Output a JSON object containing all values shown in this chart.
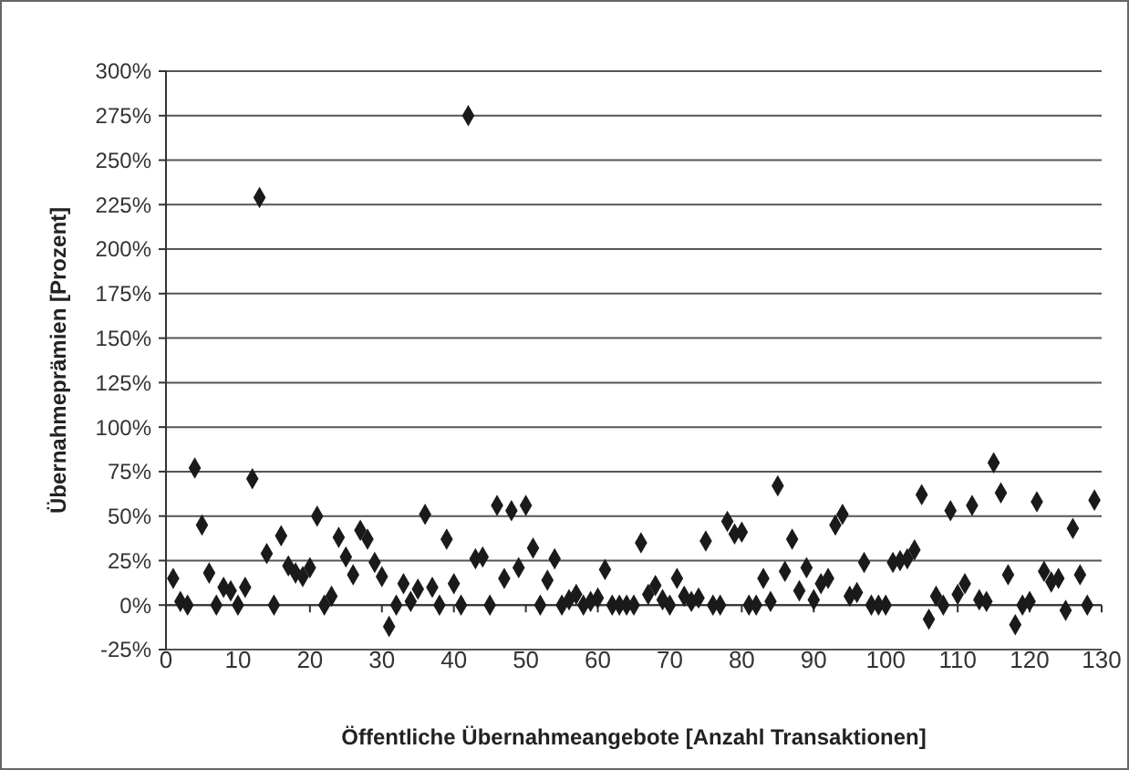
{
  "chart_data": {
    "type": "scatter",
    "xlabel": "Öffentliche Übernahmeangebote [Anzahl Transaktionen]",
    "ylabel": "Übernahmeprämien [Prozent]",
    "color": "#1a1a1a",
    "marker": "diamond",
    "grid": "y",
    "x": [
      1,
      2,
      3,
      4,
      5,
      6,
      7,
      8,
      9,
      10,
      11,
      12,
      13,
      14,
      15,
      16,
      17,
      18,
      19,
      20,
      21,
      22,
      23,
      24,
      25,
      26,
      27,
      28,
      29,
      30,
      31,
      32,
      33,
      34,
      35,
      36,
      37,
      38,
      39,
      40,
      41,
      42,
      43,
      44,
      45,
      46,
      47,
      48,
      49,
      50,
      51,
      52,
      53,
      54,
      55,
      56,
      57,
      58,
      59,
      60,
      61,
      62,
      63,
      64,
      65,
      66,
      67,
      68,
      69,
      70,
      71,
      72,
      73,
      74,
      75,
      76,
      77,
      78,
      79,
      80,
      81,
      82,
      83,
      84,
      85,
      86,
      87,
      88,
      89,
      90,
      91,
      92,
      93,
      94,
      95,
      96,
      97,
      98,
      99,
      100,
      101,
      102,
      103,
      104,
      105,
      106,
      107,
      108,
      109,
      110,
      111,
      112,
      113,
      114,
      115,
      116,
      117,
      118,
      119,
      120,
      121,
      122,
      123,
      124,
      125,
      126,
      127,
      128,
      129
    ],
    "values": [
      15,
      2,
      0,
      77,
      45,
      18,
      0,
      10,
      8,
      0,
      10,
      71,
      229,
      29,
      0,
      39,
      22,
      18,
      16,
      21,
      50,
      0,
      5,
      38,
      27,
      17,
      42,
      37,
      24,
      16,
      -12,
      0,
      12,
      2,
      9,
      51,
      10,
      0,
      37,
      12,
      0,
      275,
      26,
      27,
      0,
      56,
      15,
      53,
      21,
      56,
      32,
      0,
      14,
      26,
      0,
      3,
      6,
      0,
      2,
      4,
      20,
      0,
      0,
      0,
      0,
      35,
      6,
      11,
      3,
      0,
      15,
      5,
      2,
      4,
      36,
      0,
      0,
      47,
      40,
      41,
      0,
      0,
      15,
      2,
      67,
      19,
      37,
      8,
      21,
      3,
      12,
      15,
      45,
      51,
      5,
      7,
      24,
      0,
      0,
      0,
      24,
      25,
      26,
      31,
      62,
      -8,
      5,
      0,
      53,
      6,
      12,
      56,
      3,
      2,
      80,
      63,
      17,
      -11,
      0,
      2,
      58,
      19,
      13,
      15,
      -3,
      43,
      17,
      0,
      59
    ],
    "xlim": [
      0,
      130
    ],
    "xticks": [
      0,
      10,
      20,
      30,
      40,
      50,
      60,
      70,
      80,
      90,
      100,
      110,
      120,
      130
    ],
    "ylim": [
      -25,
      300
    ],
    "yticks": [
      {
        "value": -25,
        "label": "-25%"
      },
      {
        "value": 0,
        "label": "0%"
      },
      {
        "value": 25,
        "label": "25%"
      },
      {
        "value": 50,
        "label": "50%"
      },
      {
        "value": 75,
        "label": "75%"
      },
      {
        "value": 100,
        "label": "100%"
      },
      {
        "value": 125,
        "label": "125%"
      },
      {
        "value": 150,
        "label": "150%"
      },
      {
        "value": 175,
        "label": "175%"
      },
      {
        "value": 200,
        "label": "200%"
      },
      {
        "value": 225,
        "label": "225%"
      },
      {
        "value": 250,
        "label": "250%"
      },
      {
        "value": 275,
        "label": "275%"
      },
      {
        "value": 300,
        "label": "300%"
      }
    ]
  }
}
